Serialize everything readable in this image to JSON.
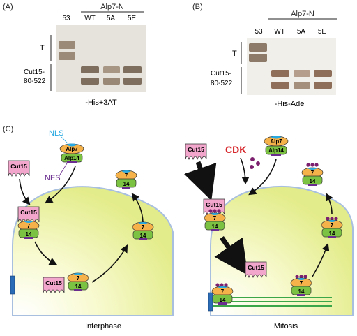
{
  "panelA": {
    "label": "(A)",
    "header": "Alp7-N",
    "lanes": [
      "53",
      "WT",
      "5A",
      "5E"
    ],
    "row1": "T",
    "row2a": "Cut15-",
    "row2b": "80-522",
    "condition": "-His+3AT"
  },
  "panelB": {
    "label": "(B)",
    "header": "Alp7-N",
    "lanes": [
      "53",
      "WT",
      "5A",
      "5E"
    ],
    "row1": "T",
    "row2a": "Cut15-",
    "row2b": "80-522",
    "condition": "-His-Ade"
  },
  "panelC": {
    "label": "(C)",
    "nls": "NLS",
    "nes": "NES",
    "alp7": "Alp7",
    "alp14": "Alp14",
    "cut15": "Cut15",
    "cdk": "CDK",
    "n7": "7",
    "n14": "14",
    "interphase": "Interphase",
    "mitosis": "Mitosis"
  },
  "colors": {
    "cut15": "#f3a6cc",
    "alp7": "#f6b24a",
    "alp14": "#7cc242",
    "nls": "#29a9e1",
    "nes": "#6a2d8f",
    "phospho": "#7b1f6e",
    "cdk": "#d6262b",
    "spindle": "#3aa647",
    "spb": "#2a6cb5"
  }
}
